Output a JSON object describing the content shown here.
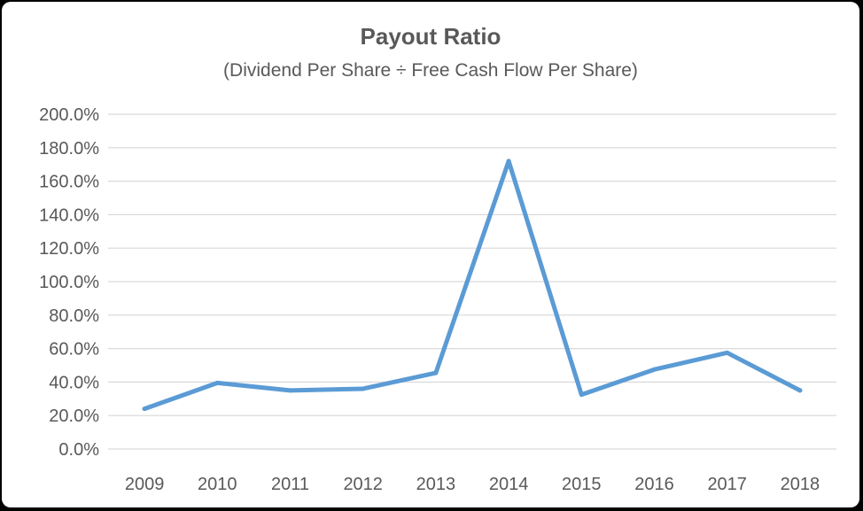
{
  "chart_data": {
    "type": "line",
    "title": "Payout Ratio",
    "subtitle": "(Dividend Per Share ÷ Free Cash Flow Per Share)",
    "xlabel": "",
    "ylabel": "",
    "categories": [
      "2009",
      "2010",
      "2011",
      "2012",
      "2013",
      "2014",
      "2015",
      "2016",
      "2017",
      "2018"
    ],
    "series": [
      {
        "values": [
          24.0,
          39.5,
          35.0,
          36.0,
          45.5,
          172.0,
          32.5,
          47.5,
          57.5,
          35.0
        ]
      }
    ],
    "ylim": [
      0,
      200
    ],
    "yticks": [
      0,
      20,
      40,
      60,
      80,
      100,
      120,
      140,
      160,
      180,
      200
    ],
    "ytick_labels": [
      "0.0%",
      "20.0%",
      "40.0%",
      "60.0%",
      "80.0%",
      "100.0%",
      "120.0%",
      "140.0%",
      "160.0%",
      "180.0%",
      "200.0%"
    ],
    "grid": true,
    "legend": "none",
    "colors": {
      "line": "#5b9bd5",
      "grid": "#d9d9d9",
      "text": "#595959",
      "frame": "#000000"
    }
  }
}
